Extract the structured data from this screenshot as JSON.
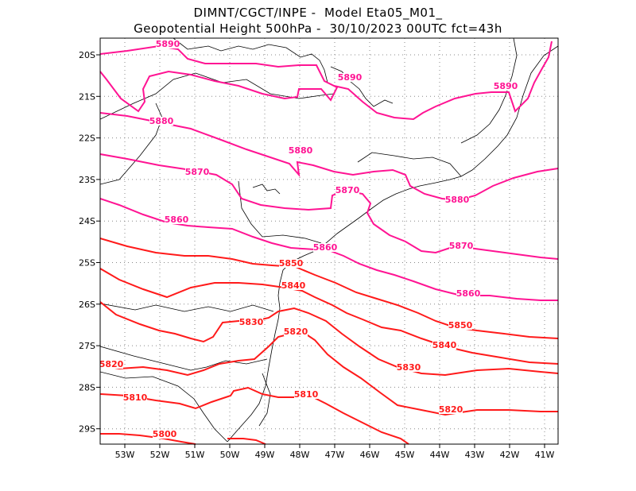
{
  "title": {
    "line1": "DIMNT/CGCT/INPE -  Model Eta05_M01_",
    "line2": "Geopotential Height 500hPa -  30/10/2023 00UTC fct=43h"
  },
  "axes": {
    "lon_labels": [
      "53W",
      "52W",
      "51W",
      "50W",
      "49W",
      "48W",
      "47W",
      "46W",
      "45W",
      "44W",
      "43W",
      "42W",
      "41W"
    ],
    "lat_labels": [
      "20S",
      "21S",
      "22S",
      "23S",
      "24S",
      "25S",
      "26S",
      "27S",
      "28S",
      "29S"
    ]
  },
  "colors": {
    "high": "#ff1493",
    "low": "#ff1a1a",
    "grid": "#888888",
    "coast": "#000000"
  },
  "contours": [
    {
      "level": 5890,
      "label": "5890"
    },
    {
      "level": 5880,
      "label": "5880"
    },
    {
      "level": 5870,
      "label": "5870"
    },
    {
      "level": 5860,
      "label": "5860"
    },
    {
      "level": 5850,
      "label": "5850"
    },
    {
      "level": 5840,
      "label": "5840"
    },
    {
      "level": 5830,
      "label": "5830"
    },
    {
      "level": 5820,
      "label": "5820"
    },
    {
      "level": 5810,
      "label": "5810"
    },
    {
      "level": 5800,
      "label": "5800"
    }
  ]
}
